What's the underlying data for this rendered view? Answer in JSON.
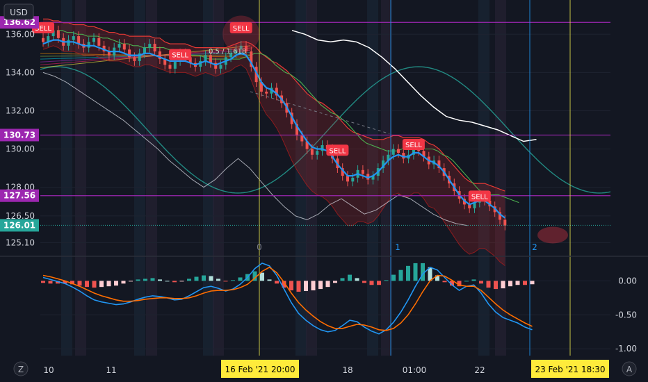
{
  "header": {
    "currency": "USD"
  },
  "footer": {
    "left_button": "Z",
    "right_button": "A"
  },
  "colors": {
    "background": "#131722",
    "grid": "#1e2330",
    "candle_up": "#26a69a",
    "candle_down": "#ef5350",
    "sell": "#f23645",
    "level_line": "#9c27b0",
    "vline_blue": "#2196f3",
    "vline_yellow": "#e7e34a",
    "macd": "#2196f3",
    "signal": "#ff6d00",
    "wave": "#26a69a",
    "white_line": "#e0e3eb",
    "band_red": "#c62828",
    "band_green": "#4caf50"
  },
  "chart_data": [
    {
      "type": "line",
      "title": "",
      "ylim": [
        124.5,
        137.5
      ],
      "y_ticks": [
        "125.10",
        "126.50",
        "128.00",
        "130.00",
        "132.00",
        "134.00",
        "136.00"
      ],
      "y_tick_values": [
        125.1,
        126.5,
        128.0,
        130.0,
        132.0,
        134.0,
        136.0
      ],
      "x_ticks": [
        "10",
        "11",
        "16 Feb '21   20:00",
        "18",
        "01:00",
        "22",
        "23 Feb '21   18:30"
      ],
      "price_levels": [
        {
          "label": "136.62",
          "value": 136.62,
          "color": "#9c27b0"
        },
        {
          "label": "130.73",
          "value": 130.73,
          "color": "#9c27b0"
        },
        {
          "label": "127.56",
          "value": 127.56,
          "color": "#9c27b0"
        },
        {
          "label": "126.01",
          "value": 126.01,
          "color": "#26a69a"
        }
      ],
      "cycle_markers": [
        "0",
        "1",
        "2"
      ],
      "sell_signals": [
        {
          "label": "SELL",
          "price": 136.3,
          "bar": 0
        },
        {
          "label": "SELL",
          "price": 136.3,
          "bar": 39
        },
        {
          "label": "SELL",
          "price": 134.9,
          "bar": 27
        },
        {
          "label": "SELL",
          "price": 129.9,
          "bar": 58
        },
        {
          "label": "SELL",
          "price": 130.2,
          "bar": 73
        },
        {
          "label": "SELL",
          "price": 127.5,
          "bar": 86
        }
      ],
      "fib_label": "0.5 / 1.618",
      "close": [
        135.6,
        135.9,
        136.2,
        135.8,
        135.4,
        135.7,
        135.9,
        135.5,
        135.3,
        135.6,
        135.8,
        135.4,
        135.1,
        134.9,
        135.3,
        135.5,
        135.2,
        134.8,
        134.6,
        135.0,
        135.3,
        135.5,
        135.1,
        134.7,
        134.4,
        134.2,
        134.6,
        135.0,
        134.8,
        134.5,
        134.3,
        134.6,
        134.9,
        134.5,
        134.2,
        134.4,
        134.8,
        135.0,
        135.2,
        135.4,
        135.1,
        134.3,
        133.5,
        133.0,
        132.9,
        133.2,
        132.8,
        132.4,
        131.9,
        131.3,
        130.7,
        130.4,
        130.0,
        129.7,
        129.9,
        130.2,
        130.0,
        129.5,
        129.0,
        128.6,
        128.3,
        128.5,
        128.9,
        128.7,
        128.4,
        128.6,
        129.0,
        129.4,
        129.7,
        130.0,
        129.8,
        129.5,
        129.7,
        130.1,
        129.9,
        129.6,
        129.2,
        129.4,
        129.0,
        128.6,
        128.2,
        127.8,
        127.4,
        127.1,
        126.9,
        127.2,
        127.5,
        127.3,
        127.0,
        126.7,
        126.3,
        126.0
      ],
      "ma_line": [
        135.5,
        135.6,
        135.7,
        135.7,
        135.6,
        135.6,
        135.6,
        135.5,
        135.4,
        135.4,
        135.4,
        135.3,
        135.2,
        135.1,
        135.1,
        135.1,
        135.0,
        134.9,
        134.9,
        134.9,
        135.0,
        135.0,
        134.9,
        134.8,
        134.7,
        134.6,
        134.6,
        134.6,
        134.6,
        134.5,
        134.4,
        134.5,
        134.6,
        134.5,
        134.4,
        134.5,
        134.6,
        134.7,
        134.9,
        135.0,
        134.9,
        134.5,
        134.0,
        133.5,
        133.2,
        133.1,
        132.9,
        132.6,
        132.2,
        131.7,
        131.2,
        130.8,
        130.4,
        130.1,
        130.0,
        130.0,
        129.9,
        129.6,
        129.2,
        128.9,
        128.6,
        128.6,
        128.7,
        128.6,
        128.5,
        128.6,
        128.8,
        129.1,
        129.4,
        129.6,
        129.7,
        129.6,
        129.6,
        129.8,
        129.8,
        129.6,
        129.4,
        129.3,
        129.1,
        128.8,
        128.4,
        128.0,
        127.6,
        127.3,
        127.1,
        127.2,
        127.3,
        127.3,
        127.1,
        126.9,
        126.6,
        126.4
      ],
      "white_projection": [
        134.0,
        133.8,
        133.5,
        133.1,
        132.7,
        132.3,
        131.9,
        131.5,
        131.0,
        130.5,
        130.0,
        129.4,
        128.9,
        128.4,
        128.0,
        128.4,
        129.0,
        129.5,
        129.0,
        128.3,
        127.6,
        127.0,
        126.5,
        126.3,
        126.6,
        127.1,
        127.4,
        127.0,
        126.6,
        126.8,
        127.2,
        127.6,
        127.4,
        127.0,
        126.6,
        126.3,
        126.1,
        126.0
      ],
      "future_white": [
        136.2,
        136.0,
        135.7,
        135.6,
        135.7,
        135.6,
        135.3,
        134.8,
        134.2,
        133.5,
        132.8,
        132.2,
        131.7,
        131.5,
        131.4,
        131.2,
        131.0,
        130.7,
        130.4,
        130.5
      ],
      "band_upper": [
        136.8,
        136.8,
        136.7,
        136.7,
        136.6,
        136.6,
        136.5,
        136.5,
        136.5,
        136.4,
        136.4,
        136.3,
        136.2,
        136.1,
        136.1,
        136.0,
        136.0,
        135.9,
        135.9,
        135.9,
        135.9,
        135.9,
        135.8,
        135.8,
        135.6,
        135.5,
        135.5,
        135.5,
        135.5,
        135.4,
        135.3,
        135.3,
        135.3,
        135.3,
        135.3,
        135.3,
        135.3,
        135.4,
        135.5,
        135.6,
        135.6,
        135.5,
        135.3,
        135.0,
        134.8,
        134.6,
        134.5,
        134.3,
        134.1,
        133.8,
        133.5,
        133.2,
        132.9,
        132.7,
        132.5,
        132.4,
        132.2,
        132.0,
        131.7,
        131.4,
        131.1,
        130.9,
        130.8,
        130.7,
        130.6,
        130.5,
        130.5,
        130.5,
        130.6,
        130.7,
        130.7,
        130.6,
        130.6,
        130.6,
        130.6,
        130.5,
        130.3,
        130.2,
        130.0,
        129.7,
        129.4,
        129.1,
        128.8,
        128.5,
        128.3,
        128.2,
        128.2,
        128.2,
        128.1,
        128.0,
        127.9,
        127.8
      ],
      "band_lower": [
        135.2,
        135.3,
        135.4,
        135.3,
        135.1,
        135.1,
        135.1,
        135.0,
        134.9,
        134.9,
        134.9,
        134.8,
        134.7,
        134.6,
        134.6,
        134.6,
        134.5,
        134.4,
        134.3,
        134.3,
        134.4,
        134.4,
        134.3,
        134.2,
        134.1,
        134.0,
        134.0,
        134.0,
        134.0,
        133.9,
        133.8,
        133.9,
        134.0,
        133.9,
        133.8,
        133.9,
        134.0,
        134.1,
        134.3,
        134.4,
        134.2,
        133.6,
        132.9,
        132.3,
        131.8,
        131.5,
        131.1,
        130.6,
        130.0,
        129.4,
        128.9,
        128.5,
        128.1,
        127.8,
        127.6,
        127.5,
        127.3,
        127.0,
        126.6,
        126.3,
        126.0,
        126.0,
        126.2,
        126.2,
        126.1,
        126.2,
        126.5,
        126.9,
        127.3,
        127.6,
        127.7,
        127.5,
        127.5,
        127.7,
        127.7,
        127.4,
        127.0,
        126.9,
        126.6,
        126.2,
        125.8,
        125.4,
        125.0,
        124.7,
        124.5,
        124.6,
        124.8,
        124.8,
        124.6,
        124.4,
        124.1,
        123.9
      ]
    },
    {
      "type": "line",
      "title": "",
      "ylim": [
        -1.1,
        0.3
      ],
      "y_ticks": [
        "0.00",
        "-0.50",
        "-1.00"
      ],
      "y_tick_values": [
        0.0,
        -0.5,
        -1.0
      ],
      "series": [
        {
          "values": [
            0.05,
            0.02,
            -0.01,
            -0.04,
            -0.09,
            -0.15,
            -0.22,
            -0.28,
            -0.31,
            -0.33,
            -0.35,
            -0.34,
            -0.31,
            -0.27,
            -0.24,
            -0.22,
            -0.23,
            -0.25,
            -0.28,
            -0.27,
            -0.22,
            -0.16,
            -0.1,
            -0.08,
            -0.11,
            -0.15,
            -0.12,
            -0.05,
            0.05,
            0.18,
            0.26,
            0.22,
            0.08,
            -0.12,
            -0.32,
            -0.48,
            -0.58,
            -0.66,
            -0.72,
            -0.75,
            -0.73,
            -0.66,
            -0.58,
            -0.6,
            -0.68,
            -0.74,
            -0.78,
            -0.72,
            -0.61,
            -0.46,
            -0.28,
            -0.08,
            0.1,
            0.2,
            0.16,
            0.05,
            -0.06,
            -0.14,
            -0.08,
            -0.06,
            -0.18,
            -0.34,
            -0.46,
            -0.54,
            -0.58,
            -0.62,
            -0.68,
            -0.72
          ]
        },
        {
          "values": [
            0.08,
            0.06,
            0.03,
            0.0,
            -0.04,
            -0.08,
            -0.13,
            -0.18,
            -0.22,
            -0.25,
            -0.28,
            -0.3,
            -0.3,
            -0.29,
            -0.27,
            -0.26,
            -0.25,
            -0.25,
            -0.26,
            -0.26,
            -0.25,
            -0.22,
            -0.18,
            -0.15,
            -0.14,
            -0.14,
            -0.13,
            -0.1,
            -0.05,
            0.04,
            0.14,
            0.2,
            0.12,
            -0.02,
            -0.18,
            -0.32,
            -0.43,
            -0.52,
            -0.6,
            -0.66,
            -0.7,
            -0.7,
            -0.67,
            -0.64,
            -0.65,
            -0.68,
            -0.72,
            -0.73,
            -0.7,
            -0.62,
            -0.5,
            -0.34,
            -0.16,
            0.0,
            0.08,
            0.07,
            0.01,
            -0.06,
            -0.08,
            -0.08,
            -0.14,
            -0.24,
            -0.34,
            -0.43,
            -0.5,
            -0.56,
            -0.62,
            -0.67
          ]
        }
      ],
      "histogram": [
        -0.03,
        -0.04,
        -0.04,
        -0.04,
        -0.05,
        -0.07,
        -0.09,
        -0.1,
        -0.09,
        -0.08,
        -0.07,
        -0.04,
        -0.01,
        0.02,
        0.03,
        0.04,
        0.02,
        0.0,
        -0.02,
        -0.01,
        0.03,
        0.06,
        0.08,
        0.07,
        0.03,
        -0.01,
        0.01,
        0.05,
        0.1,
        0.14,
        0.12,
        0.02,
        -0.04,
        -0.1,
        -0.14,
        -0.16,
        -0.15,
        -0.14,
        -0.12,
        -0.09,
        -0.03,
        0.04,
        0.09,
        0.04,
        -0.03,
        -0.06,
        -0.06,
        0.01,
        0.09,
        0.16,
        0.22,
        0.26,
        0.26,
        0.2,
        0.08,
        -0.02,
        -0.07,
        -0.08,
        0.0,
        0.02,
        -0.04,
        -0.1,
        -0.12,
        -0.11,
        -0.08,
        -0.06,
        -0.06,
        -0.05
      ]
    }
  ]
}
